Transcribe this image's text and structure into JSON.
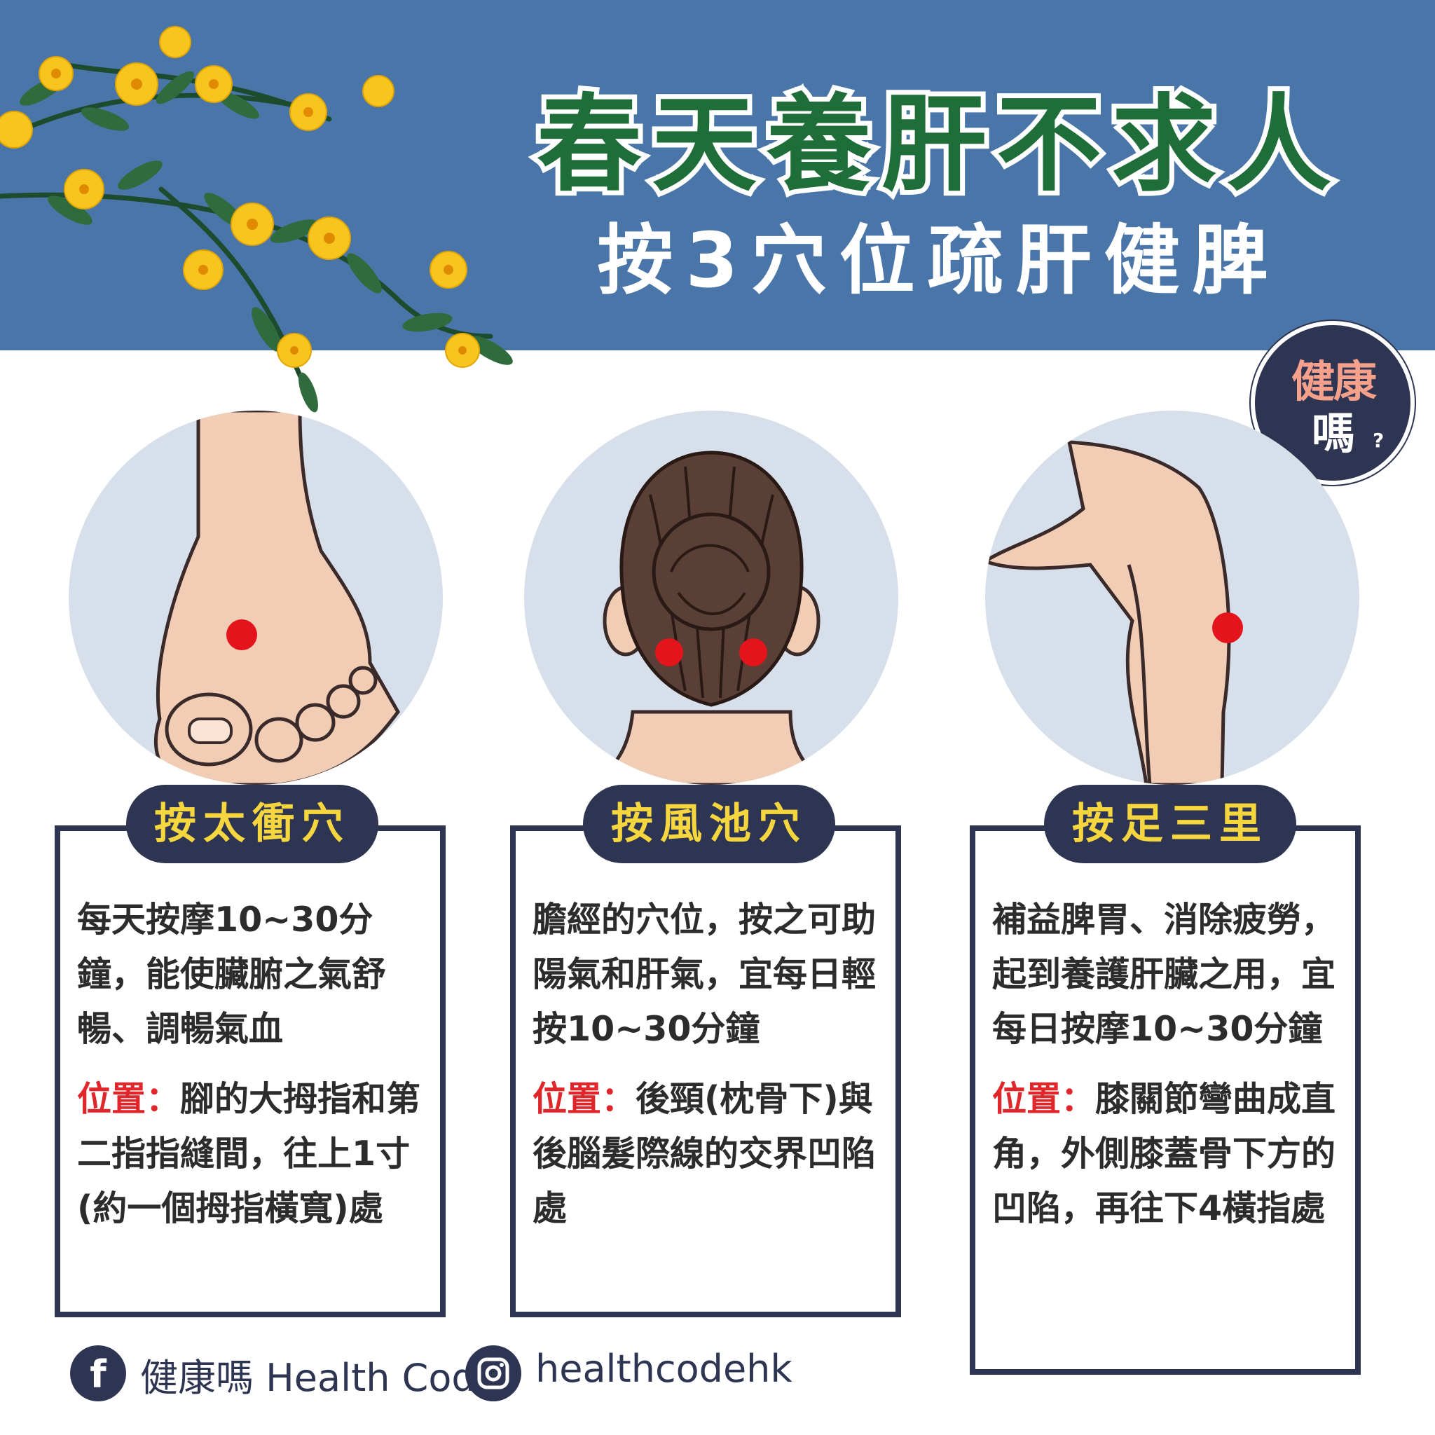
{
  "header": {
    "title": "春天養肝不求人",
    "subtitle": "按3穴位疏肝健脾"
  },
  "logo": {
    "line1": "健康",
    "line2": "嗎",
    "mark": "?"
  },
  "colors": {
    "header_bg": "#4a75a8",
    "navy": "#2e3552",
    "title_green": "#1f6e3a",
    "accent_red": "#e0262a",
    "pill_yellow": "#f5d63f"
  },
  "cards": [
    {
      "label": "按太衝穴",
      "desc": "每天按摩10~30分鐘，能使臟腑之氣舒暢、調暢氣血",
      "pos_label": "位置：",
      "pos_text": "腳的大拇指和第二指指縫間，往上1寸(約一個拇指橫寬)處",
      "illustration": "foot-icon"
    },
    {
      "label": "按風池穴",
      "desc": "膽經的穴位，按之可助陽氣和肝氣，宜每日輕按10~30分鐘",
      "pos_label": "位置：",
      "pos_text": "後頸(枕骨下)與後腦髮際線的交界凹陷處",
      "illustration": "head-back-icon"
    },
    {
      "label": "按足三里",
      "desc": "補益脾胃、消除疲勞，起到養護肝臟之用，宜每日按摩10~30分鐘",
      "pos_label": "位置：",
      "pos_text": "膝關節彎曲成直角，外側膝蓋骨下方的凹陷，再往下4橫指處",
      "illustration": "bent-leg-icon"
    }
  ],
  "footer": {
    "facebook": "健康嗎 Health Code",
    "instagram": "healthcodehk"
  }
}
